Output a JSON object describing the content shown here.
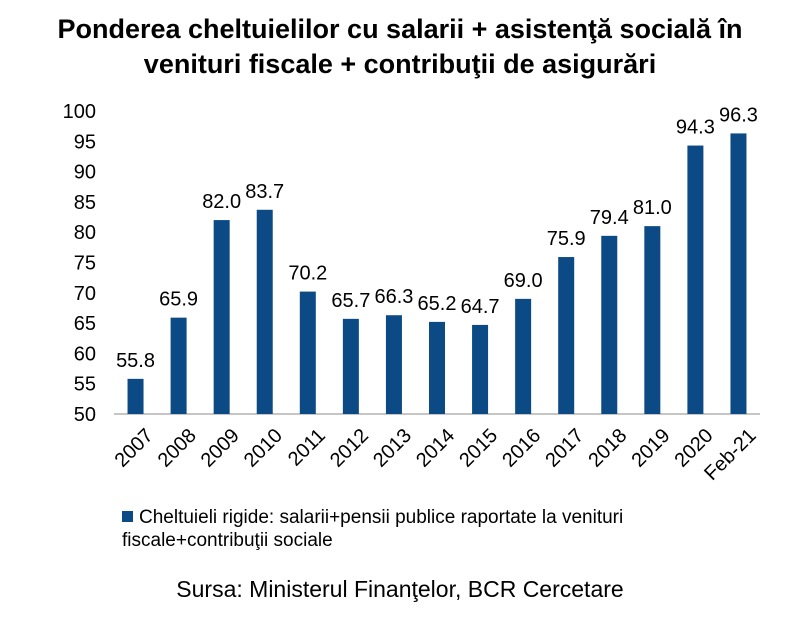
{
  "chart_data": {
    "type": "bar",
    "title_line1": "Ponderea cheltuielilor cu salarii + asistenţă socială în",
    "title_line2": "venituri fiscale + contribuţii de asigurări",
    "categories": [
      "2007",
      "2008",
      "2009",
      "2010",
      "2011",
      "2012",
      "2013",
      "2014",
      "2015",
      "2016",
      "2017",
      "2018",
      "2019",
      "2020",
      "Feb-21"
    ],
    "series": [
      {
        "name": "Cheltuieli rigide: salarii+pensii publice raportate la venituri fiscale+contribuţii sociale",
        "values": [
          55.8,
          65.9,
          82.0,
          83.7,
          70.2,
          65.7,
          66.3,
          65.2,
          64.7,
          69.0,
          75.9,
          79.4,
          81.0,
          94.3,
          96.3
        ],
        "color": "#0b4a84"
      }
    ],
    "value_labels": [
      "55.8",
      "65.9",
      "82.0",
      "83.7",
      "70.2",
      "65.7",
      "66.3",
      "65.2",
      "64.7",
      "69.0",
      "75.9",
      "79.4",
      "81.0",
      "94.3",
      "96.3"
    ],
    "ylim": [
      50,
      100
    ],
    "yticks": [
      "50",
      "55",
      "60",
      "65",
      "70",
      "75",
      "80",
      "85",
      "90",
      "95",
      "100"
    ],
    "grid": false,
    "legend_position": "bottom"
  },
  "legend_line1": "Cheltuieli rigide: salarii+pensii publice raportate la venituri",
  "legend_line2": "fiscale+contribuţii sociale",
  "source": "Sursa: Ministerul Finanţelor, BCR Cercetare"
}
